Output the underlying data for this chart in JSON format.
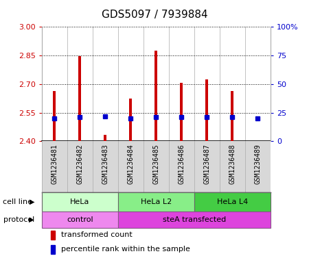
{
  "title": "GDS5097 / 7939884",
  "samples": [
    "GSM1236481",
    "GSM1236482",
    "GSM1236483",
    "GSM1236484",
    "GSM1236485",
    "GSM1236486",
    "GSM1236487",
    "GSM1236488",
    "GSM1236489"
  ],
  "red_values": [
    2.665,
    2.845,
    2.435,
    2.625,
    2.875,
    2.705,
    2.725,
    2.665,
    2.4
  ],
  "blue_pct": [
    20,
    21,
    22,
    20,
    21,
    21,
    21,
    21,
    20
  ],
  "y_min": 2.4,
  "y_max": 3.0,
  "yticks_left": [
    2.4,
    2.55,
    2.7,
    2.85,
    3.0
  ],
  "yticks_right_pct": [
    0,
    25,
    50,
    75,
    100
  ],
  "yticks_right_labels": [
    "0",
    "25",
    "50",
    "75",
    "100%"
  ],
  "cell_line_groups": [
    {
      "label": "HeLa",
      "start": 0,
      "end": 3,
      "color": "#ccffcc"
    },
    {
      "label": "HeLa L2",
      "start": 3,
      "end": 6,
      "color": "#88ee88"
    },
    {
      "label": "HeLa L4",
      "start": 6,
      "end": 9,
      "color": "#44cc44"
    }
  ],
  "protocol_groups": [
    {
      "label": "control",
      "start": 0,
      "end": 3,
      "color": "#ee88ee"
    },
    {
      "label": "steA transfected",
      "start": 3,
      "end": 9,
      "color": "#dd44dd"
    }
  ],
  "legend_red_label": "transformed count",
  "legend_blue_label": "percentile rank within the sample",
  "bar_color": "#cc0000",
  "dot_color": "#0000cc",
  "sample_bg": "#d8d8d8",
  "chart_bg": "#ffffff",
  "left_axis_color": "#cc0000",
  "right_axis_color": "#0000cc",
  "title_fontsize": 11
}
